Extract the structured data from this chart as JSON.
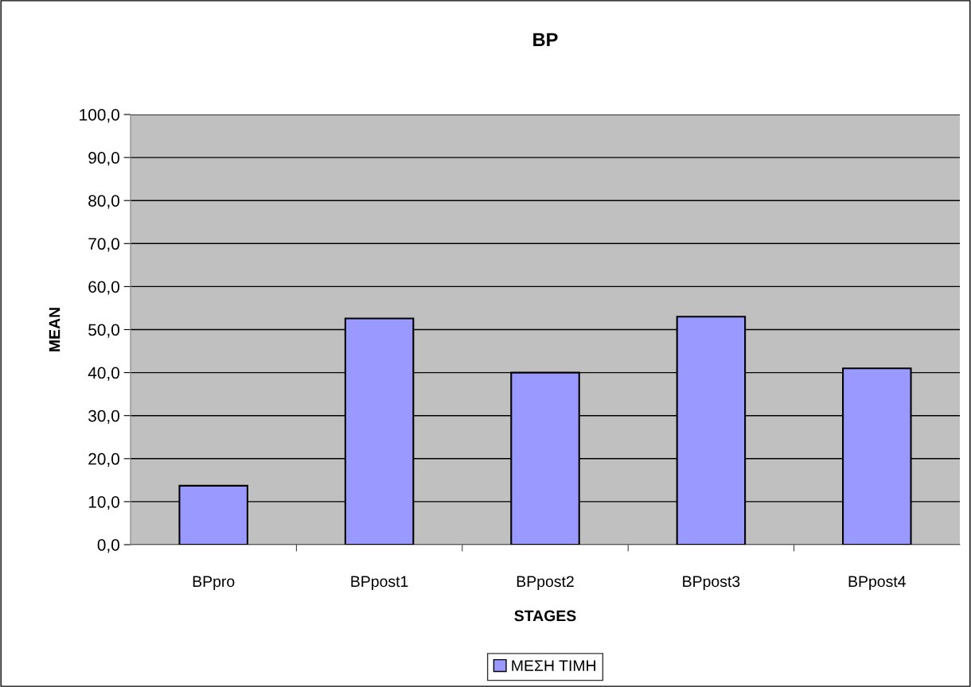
{
  "chart_data": {
    "type": "bar",
    "title": "BP",
    "xlabel": "STAGES",
    "ylabel": "MEAN",
    "categories": [
      "BPpro",
      "BPpost1",
      "BPpost2",
      "BPpost3",
      "BPpost4"
    ],
    "series": [
      {
        "name": "ΜΕΣΗ ΤΙΜΗ",
        "color": "#9999ff",
        "values": [
          13.7,
          52.6,
          40.0,
          53.0,
          41.0
        ]
      }
    ],
    "ylim": [
      0,
      100
    ],
    "yticks": [
      {
        "value": 0,
        "label": "0,0"
      },
      {
        "value": 10,
        "label": "10,0"
      },
      {
        "value": 20,
        "label": "20,0"
      },
      {
        "value": 30,
        "label": "30,0"
      },
      {
        "value": 40,
        "label": "40,0"
      },
      {
        "value": 50,
        "label": "50,0"
      },
      {
        "value": 60,
        "label": "60,0"
      },
      {
        "value": 70,
        "label": "70,0"
      },
      {
        "value": 80,
        "label": "80,0"
      },
      {
        "value": 90,
        "label": "90,0"
      },
      {
        "value": 100,
        "label": "100,0"
      }
    ],
    "grid": "y",
    "legend": "bottom"
  }
}
